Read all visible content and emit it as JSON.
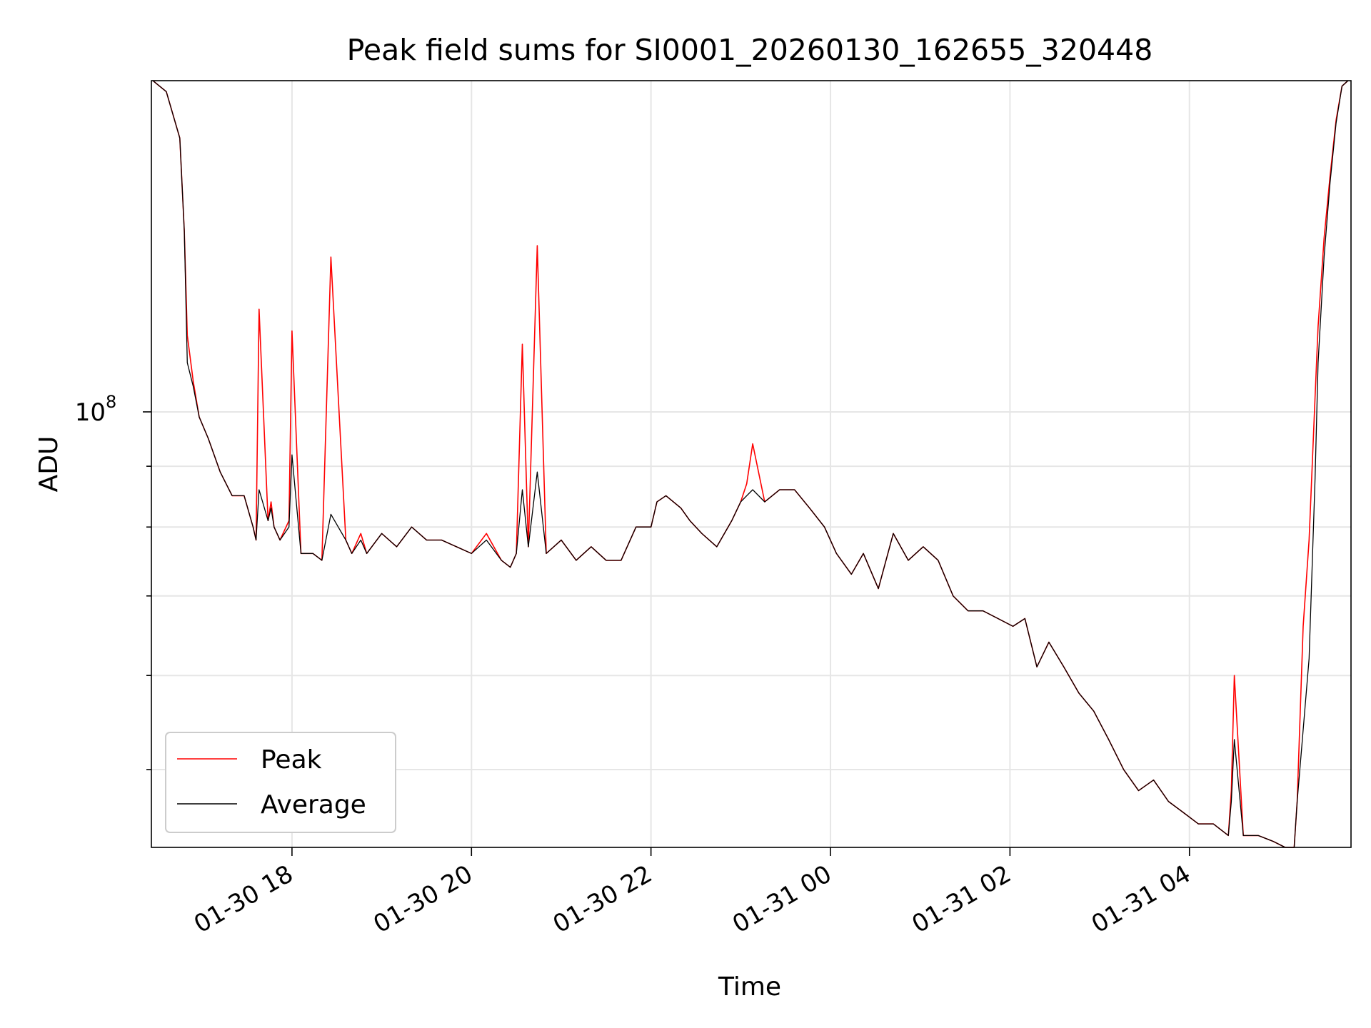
{
  "chart_data": {
    "type": "line",
    "title": "Peak field sums for SI0001_20260130_162655_320448",
    "xlabel": "Time",
    "ylabel": "ADU",
    "yscale": "log",
    "grid": true,
    "legend_position": "lower-left",
    "xlim": [
      "2026-01-30 16:26",
      "2026-01-31 05:48"
    ],
    "ylim": [
      43000000,
      190000000
    ],
    "x_ticks": [
      "2026-01-30 18:00",
      "2026-01-30 20:00",
      "2026-01-30 22:00",
      "2026-01-31 00:00",
      "2026-01-31 02:00",
      "2026-01-31 04:00"
    ],
    "x_tick_labels": [
      "01-30 18",
      "01-30 20",
      "01-30 22",
      "01-31 00",
      "01-31 02",
      "01-31 04"
    ],
    "y_ticks": [
      100000000
    ],
    "y_tick_labels": [
      "10"
    ],
    "y_tick_exponent": "8",
    "series": [
      {
        "name": "Peak",
        "color": "#ff0000",
        "x": [
          "2026-01-30 16:27",
          "2026-01-30 16:36",
          "2026-01-30 16:45",
          "2026-01-30 16:48",
          "2026-01-30 16:50",
          "2026-01-30 16:54",
          "2026-01-30 16:58",
          "2026-01-30 17:04",
          "2026-01-30 17:12",
          "2026-01-30 17:20",
          "2026-01-30 17:28",
          "2026-01-30 17:34",
          "2026-01-30 17:36",
          "2026-01-30 17:38",
          "2026-01-30 17:44",
          "2026-01-30 17:46",
          "2026-01-30 17:48",
          "2026-01-30 17:52",
          "2026-01-30 17:58",
          "2026-01-30 18:00",
          "2026-01-30 18:06",
          "2026-01-30 18:14",
          "2026-01-30 18:20",
          "2026-01-30 18:26",
          "2026-01-30 18:36",
          "2026-01-30 18:38",
          "2026-01-30 18:40",
          "2026-01-30 18:46",
          "2026-01-30 18:50",
          "2026-01-30 19:00",
          "2026-01-30 19:10",
          "2026-01-30 19:20",
          "2026-01-30 19:30",
          "2026-01-30 19:40",
          "2026-01-30 19:50",
          "2026-01-30 20:00",
          "2026-01-30 20:10",
          "2026-01-30 20:20",
          "2026-01-30 20:26",
          "2026-01-30 20:30",
          "2026-01-30 20:34",
          "2026-01-30 20:38",
          "2026-01-30 20:44",
          "2026-01-30 20:50",
          "2026-01-30 21:00",
          "2026-01-30 21:10",
          "2026-01-30 21:20",
          "2026-01-30 21:30",
          "2026-01-30 21:40",
          "2026-01-30 21:50",
          "2026-01-30 22:00",
          "2026-01-30 22:04",
          "2026-01-30 22:10",
          "2026-01-30 22:20",
          "2026-01-30 22:26",
          "2026-01-30 22:34",
          "2026-01-30 22:44",
          "2026-01-30 22:54",
          "2026-01-30 23:00",
          "2026-01-30 23:04",
          "2026-01-30 23:08",
          "2026-01-30 23:16",
          "2026-01-30 23:26",
          "2026-01-30 23:36",
          "2026-01-30 23:46",
          "2026-01-30 23:56",
          "2026-01-31 00:04",
          "2026-01-31 00:14",
          "2026-01-31 00:22",
          "2026-01-31 00:32",
          "2026-01-31 00:42",
          "2026-01-31 00:52",
          "2026-01-31 01:02",
          "2026-01-31 01:12",
          "2026-01-31 01:22",
          "2026-01-31 01:32",
          "2026-01-31 01:42",
          "2026-01-31 01:52",
          "2026-01-31 02:02",
          "2026-01-31 02:10",
          "2026-01-31 02:18",
          "2026-01-31 02:26",
          "2026-01-31 02:36",
          "2026-01-31 02:46",
          "2026-01-31 02:56",
          "2026-01-31 03:06",
          "2026-01-31 03:16",
          "2026-01-31 03:26",
          "2026-01-31 03:36",
          "2026-01-31 03:46",
          "2026-01-31 03:56",
          "2026-01-31 04:06",
          "2026-01-31 04:16",
          "2026-01-31 04:26",
          "2026-01-31 04:28",
          "2026-01-31 04:30",
          "2026-01-31 04:36",
          "2026-01-31 04:46",
          "2026-01-31 04:56",
          "2026-01-31 05:04",
          "2026-01-31 05:08",
          "2026-01-31 05:10",
          "2026-01-31 05:12",
          "2026-01-31 05:16",
          "2026-01-31 05:20",
          "2026-01-31 05:24",
          "2026-01-31 05:26",
          "2026-01-31 05:30",
          "2026-01-31 05:34",
          "2026-01-31 05:38",
          "2026-01-31 05:42",
          "2026-01-31 05:46"
        ],
        "y": [
          190000000,
          186000000,
          170000000,
          142000000,
          116000000,
          106000000,
          99000000,
          95000000,
          89000000,
          85000000,
          85000000,
          80000000,
          78000000,
          122000000,
          81000000,
          84000000,
          80000000,
          78000000,
          81000000,
          117000000,
          76000000,
          76000000,
          75000000,
          135000000,
          78000000,
          77000000,
          76000000,
          79000000,
          76000000,
          79000000,
          77000000,
          80000000,
          78000000,
          78000000,
          77000000,
          76000000,
          79000000,
          75000000,
          74000000,
          76000000,
          114000000,
          77000000,
          138000000,
          76000000,
          78000000,
          75000000,
          77000000,
          75000000,
          75000000,
          80000000,
          80000000,
          84000000,
          85000000,
          83000000,
          81000000,
          79000000,
          77000000,
          81000000,
          84000000,
          87000000,
          94000000,
          84000000,
          86000000,
          86000000,
          83000000,
          80000000,
          76000000,
          73000000,
          76000000,
          71000000,
          79000000,
          75000000,
          77000000,
          75000000,
          70000000,
          68000000,
          68000000,
          67000000,
          66000000,
          67000000,
          61000000,
          64000000,
          61000000,
          58000000,
          56000000,
          53000000,
          50000000,
          48000000,
          49000000,
          47000000,
          46000000,
          45000000,
          45000000,
          44000000,
          48000000,
          60000000,
          44000000,
          44000000,
          43500000,
          43000000,
          43000000,
          43000000,
          47000000,
          66000000,
          78000000,
          103000000,
          118000000,
          140000000,
          158000000,
          176000000,
          188000000,
          190000000
        ]
      },
      {
        "name": "Average",
        "color": "#000000",
        "x": [
          "2026-01-30 16:27",
          "2026-01-30 16:36",
          "2026-01-30 16:45",
          "2026-01-30 16:48",
          "2026-01-30 16:50",
          "2026-01-30 16:54",
          "2026-01-30 16:58",
          "2026-01-30 17:04",
          "2026-01-30 17:12",
          "2026-01-30 17:20",
          "2026-01-30 17:28",
          "2026-01-30 17:34",
          "2026-01-30 17:36",
          "2026-01-30 17:38",
          "2026-01-30 17:44",
          "2026-01-30 17:46",
          "2026-01-30 17:48",
          "2026-01-30 17:52",
          "2026-01-30 17:58",
          "2026-01-30 18:00",
          "2026-01-30 18:06",
          "2026-01-30 18:14",
          "2026-01-30 18:20",
          "2026-01-30 18:26",
          "2026-01-30 18:36",
          "2026-01-30 18:38",
          "2026-01-30 18:40",
          "2026-01-30 18:46",
          "2026-01-30 18:50",
          "2026-01-30 19:00",
          "2026-01-30 19:10",
          "2026-01-30 19:20",
          "2026-01-30 19:30",
          "2026-01-30 19:40",
          "2026-01-30 19:50",
          "2026-01-30 20:00",
          "2026-01-30 20:10",
          "2026-01-30 20:20",
          "2026-01-30 20:26",
          "2026-01-30 20:30",
          "2026-01-30 20:34",
          "2026-01-30 20:38",
          "2026-01-30 20:44",
          "2026-01-30 20:50",
          "2026-01-30 21:00",
          "2026-01-30 21:10",
          "2026-01-30 21:20",
          "2026-01-30 21:30",
          "2026-01-30 21:40",
          "2026-01-30 21:50",
          "2026-01-30 22:00",
          "2026-01-30 22:04",
          "2026-01-30 22:10",
          "2026-01-30 22:20",
          "2026-01-30 22:26",
          "2026-01-30 22:34",
          "2026-01-30 22:44",
          "2026-01-30 22:54",
          "2026-01-30 23:00",
          "2026-01-30 23:04",
          "2026-01-30 23:08",
          "2026-01-30 23:16",
          "2026-01-30 23:26",
          "2026-01-30 23:36",
          "2026-01-30 23:46",
          "2026-01-30 23:56",
          "2026-01-31 00:04",
          "2026-01-31 00:14",
          "2026-01-31 00:22",
          "2026-01-31 00:32",
          "2026-01-31 00:42",
          "2026-01-31 00:52",
          "2026-01-31 01:02",
          "2026-01-31 01:12",
          "2026-01-31 01:22",
          "2026-01-31 01:32",
          "2026-01-31 01:42",
          "2026-01-31 01:52",
          "2026-01-31 02:02",
          "2026-01-31 02:10",
          "2026-01-31 02:18",
          "2026-01-31 02:26",
          "2026-01-31 02:36",
          "2026-01-31 02:46",
          "2026-01-31 02:56",
          "2026-01-31 03:06",
          "2026-01-31 03:16",
          "2026-01-31 03:26",
          "2026-01-31 03:36",
          "2026-01-31 03:46",
          "2026-01-31 03:56",
          "2026-01-31 04:06",
          "2026-01-31 04:16",
          "2026-01-31 04:26",
          "2026-01-31 04:28",
          "2026-01-31 04:30",
          "2026-01-31 04:36",
          "2026-01-31 04:46",
          "2026-01-31 04:56",
          "2026-01-31 05:04",
          "2026-01-31 05:08",
          "2026-01-31 05:10",
          "2026-01-31 05:12",
          "2026-01-31 05:16",
          "2026-01-31 05:20",
          "2026-01-31 05:24",
          "2026-01-31 05:26",
          "2026-01-31 05:30",
          "2026-01-31 05:34",
          "2026-01-31 05:38",
          "2026-01-31 05:42",
          "2026-01-31 05:46"
        ],
        "y": [
          190000000,
          186000000,
          170000000,
          142000000,
          110000000,
          105000000,
          99000000,
          95000000,
          89000000,
          85000000,
          85000000,
          80000000,
          78000000,
          86000000,
          81000000,
          83000000,
          80000000,
          78000000,
          80000000,
          92000000,
          76000000,
          76000000,
          75000000,
          82000000,
          78000000,
          77000000,
          76000000,
          78000000,
          76000000,
          79000000,
          77000000,
          80000000,
          78000000,
          78000000,
          77000000,
          76000000,
          78000000,
          75000000,
          74000000,
          76000000,
          86000000,
          77000000,
          89000000,
          76000000,
          78000000,
          75000000,
          77000000,
          75000000,
          75000000,
          80000000,
          80000000,
          84000000,
          85000000,
          83000000,
          81000000,
          79000000,
          77000000,
          81000000,
          84000000,
          85000000,
          86000000,
          84000000,
          86000000,
          86000000,
          83000000,
          80000000,
          76000000,
          73000000,
          76000000,
          71000000,
          79000000,
          75000000,
          77000000,
          75000000,
          70000000,
          68000000,
          68000000,
          67000000,
          66000000,
          67000000,
          61000000,
          64000000,
          61000000,
          58000000,
          56000000,
          53000000,
          50000000,
          48000000,
          49000000,
          47000000,
          46000000,
          45000000,
          45000000,
          44000000,
          47000000,
          53000000,
          44000000,
          44000000,
          43500000,
          43000000,
          43000000,
          43000000,
          47000000,
          54000000,
          62000000,
          88000000,
          110000000,
          135000000,
          156000000,
          175000000,
          188000000,
          190000000
        ]
      }
    ]
  }
}
